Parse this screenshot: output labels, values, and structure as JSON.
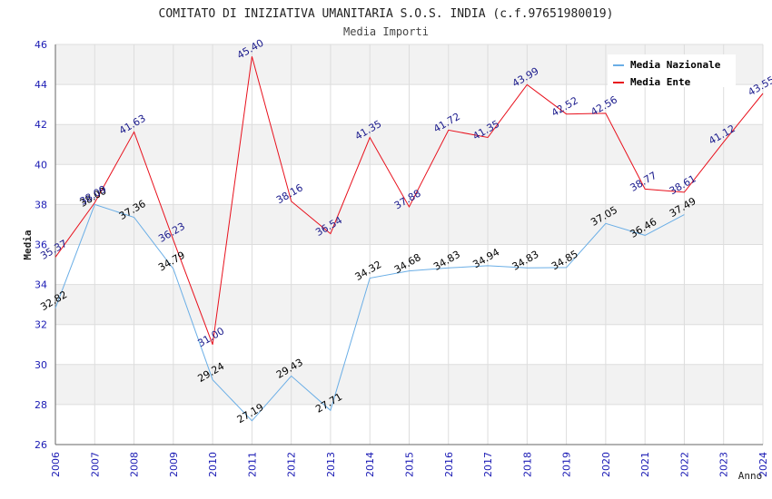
{
  "chart_data": {
    "type": "line",
    "title": "COMITATO DI INIZIATIVA UMANITARIA S.O.S. INDIA (c.f.97651980019)",
    "subtitle": "Media Importi",
    "xlabel": "Anno",
    "ylabel": "Media",
    "ylim": [
      26,
      46
    ],
    "yticks": [
      "26",
      "28",
      "30",
      "32",
      "34",
      "36",
      "38",
      "40",
      "42",
      "44",
      "46"
    ],
    "x": [
      "2006",
      "2007",
      "2008",
      "2009",
      "2010",
      "2011",
      "2012",
      "2013",
      "2014",
      "2015",
      "2016",
      "2017",
      "2018",
      "2019",
      "2020",
      "2021",
      "2022",
      "2023",
      "2024"
    ],
    "grid": true,
    "legend_position": "top-right",
    "series": [
      {
        "name": "Media Nazionale",
        "color": "#6aaee6",
        "label_color": "#000000",
        "values": [
          32.82,
          38.0,
          37.36,
          34.79,
          29.24,
          27.19,
          29.43,
          27.71,
          34.32,
          34.68,
          34.83,
          34.94,
          34.83,
          34.85,
          37.05,
          36.46,
          37.49,
          null,
          null
        ],
        "labels": [
          "32.82",
          "38.00",
          "37.36",
          "34.79",
          "29.24",
          "27.19",
          "29.43",
          "27.71",
          "34.32",
          "34.68",
          "34.83",
          "34.94",
          "34.83",
          "34.85",
          "37.05",
          "36.46",
          "37.49",
          null,
          null
        ]
      },
      {
        "name": "Media Ente",
        "color": "#e8101c",
        "label_color": "#1a1a8c",
        "values": [
          35.37,
          38.09,
          41.63,
          36.23,
          31.0,
          45.4,
          38.16,
          36.54,
          41.35,
          37.88,
          41.72,
          41.35,
          43.99,
          42.52,
          42.56,
          38.77,
          38.61,
          41.12,
          43.55
        ],
        "labels": [
          "35.37",
          "38.09",
          "41.63",
          "36.23",
          "31.00",
          "45.40",
          "38.16",
          "36.54",
          "41.35",
          "37.88",
          "41.72",
          "41.35",
          "43.99",
          "42.52",
          "42.56",
          "38.77",
          "38.61",
          "41.12",
          "43.55"
        ]
      }
    ]
  }
}
